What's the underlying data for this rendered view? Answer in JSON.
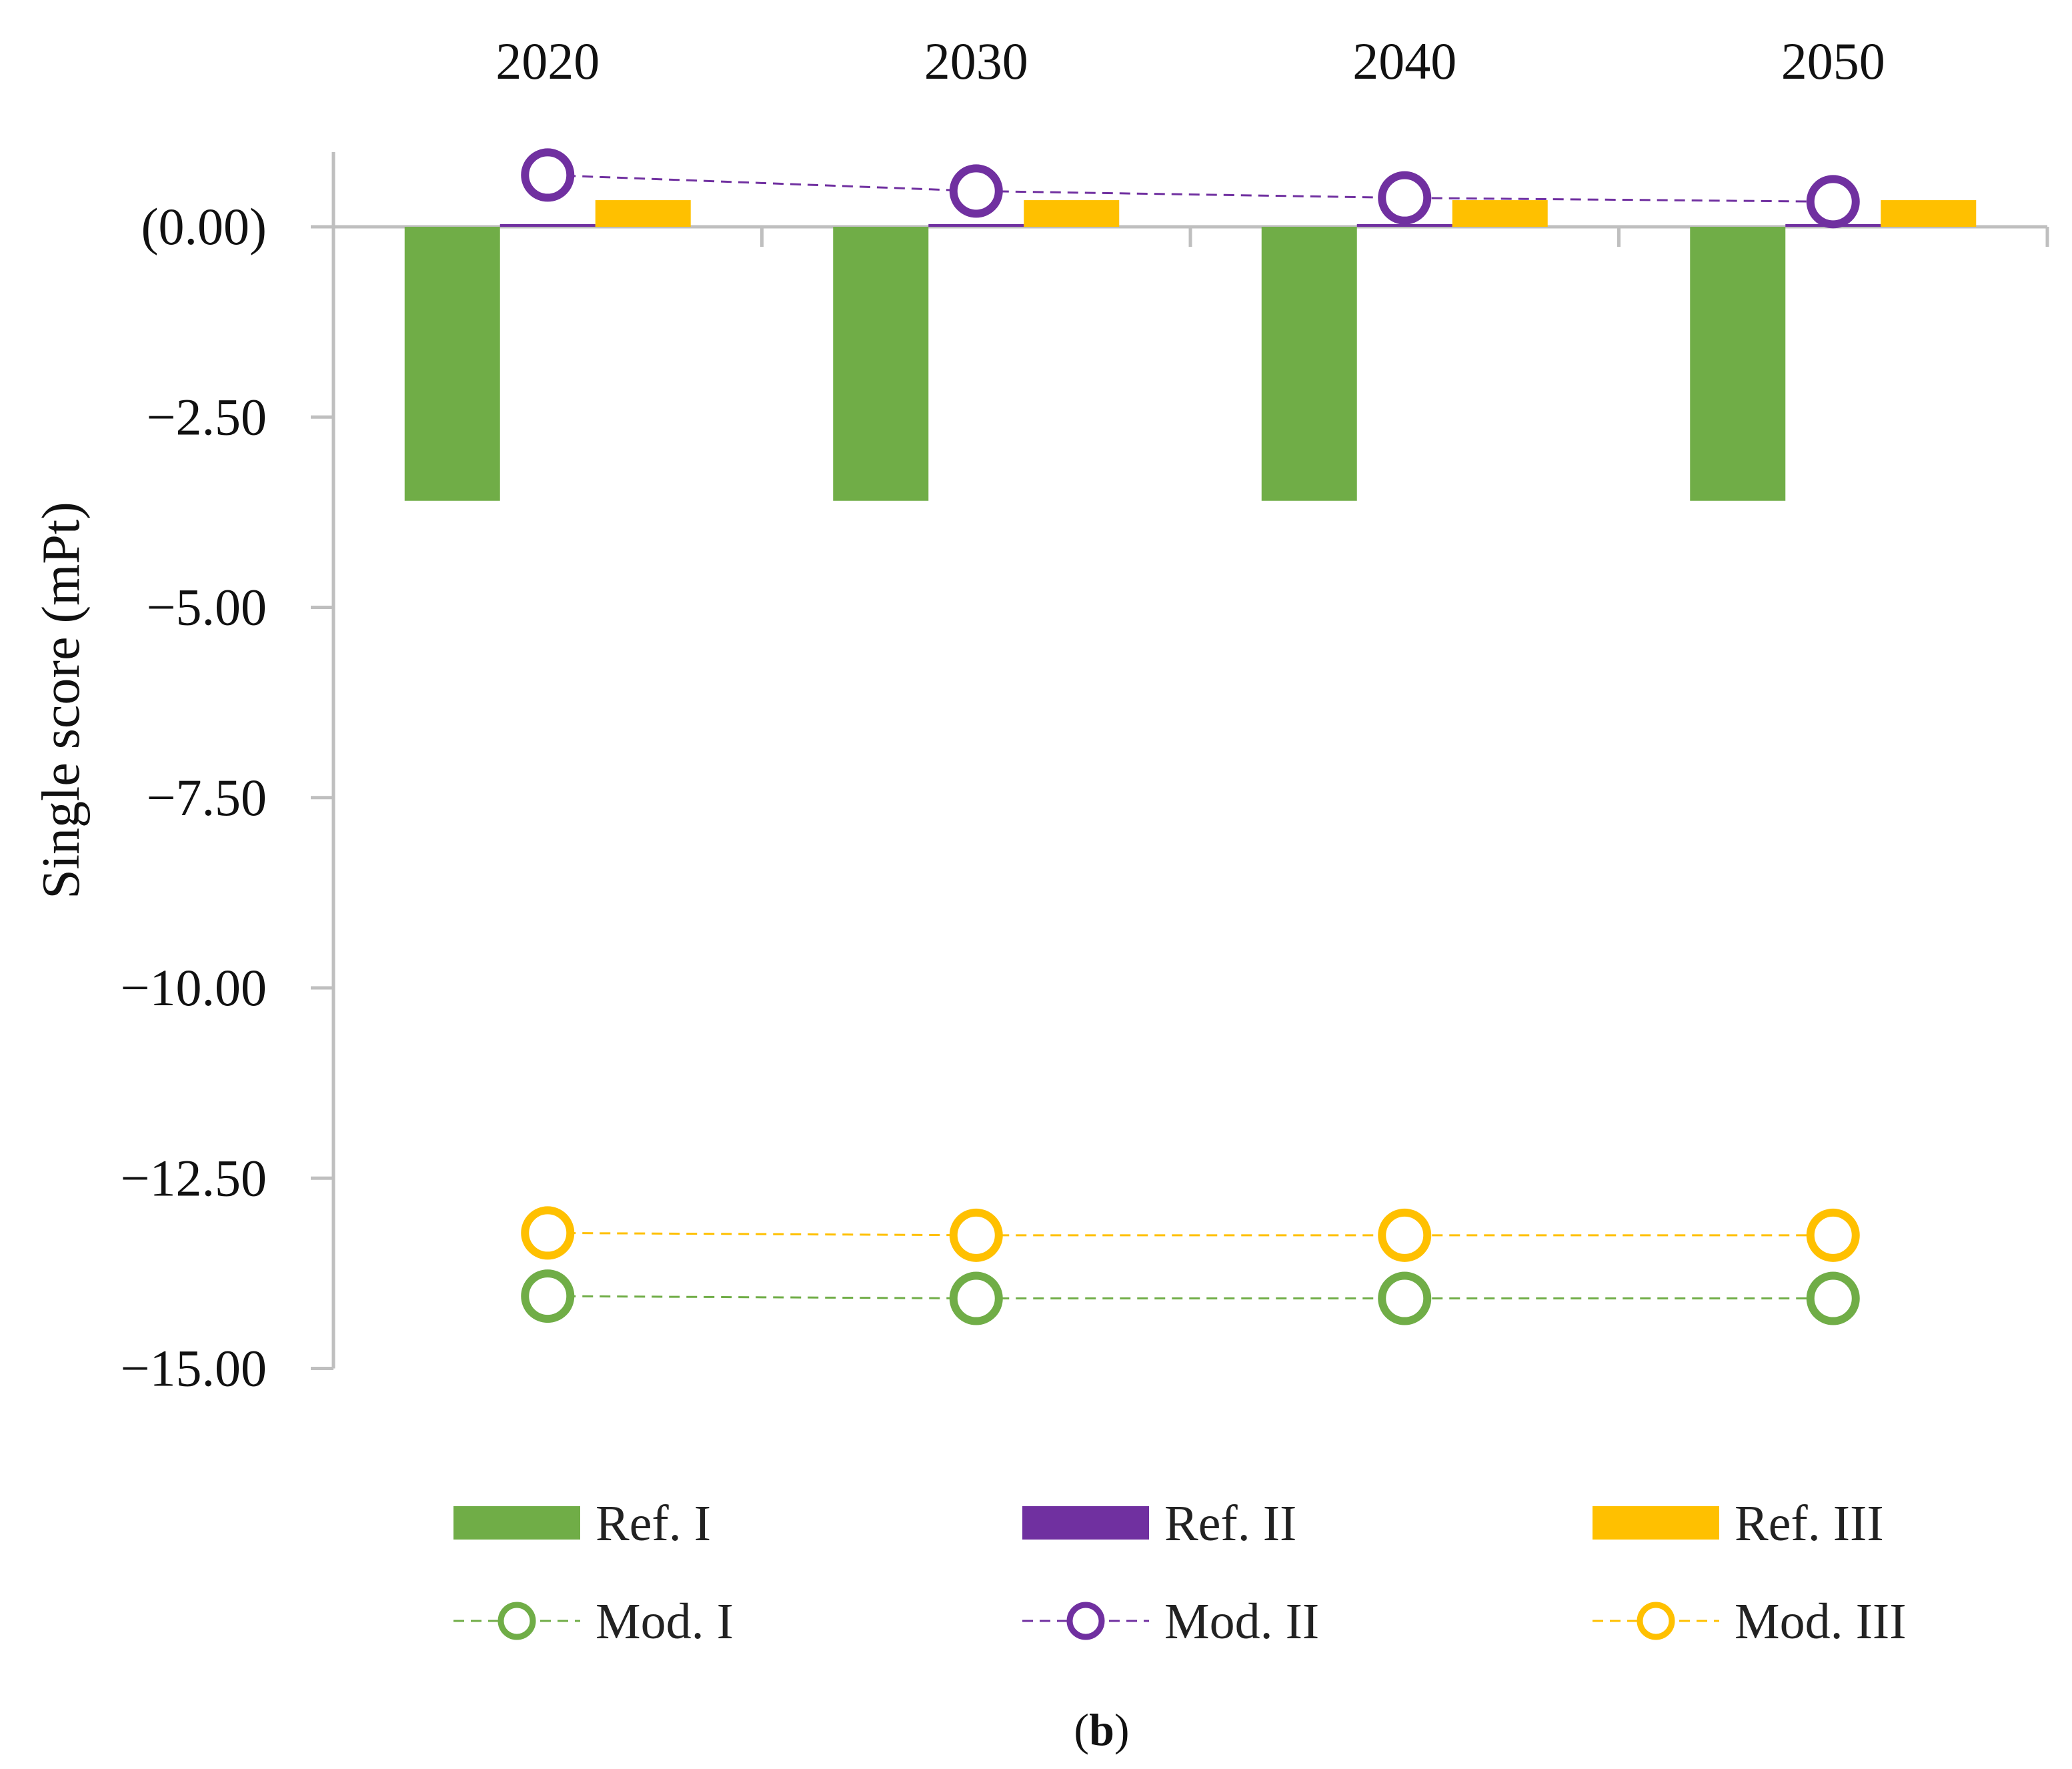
{
  "chart_data": {
    "type": "bar",
    "categories": [
      "2020",
      "2030",
      "2040",
      "2050"
    ],
    "ylabel": "Single score (mPt)",
    "ylim": [
      -15.0,
      1.0
    ],
    "yticks": [
      0,
      -2.5,
      -5,
      -7.5,
      -10,
      -12.5,
      -15
    ],
    "ytick_labels": [
      "(0.00)",
      "−2.50",
      "−5.00",
      "−7.50",
      "−10.00",
      "−12.50",
      "−15.00"
    ],
    "x_axis_position": "top",
    "bar_series": [
      {
        "name": "Ref. I",
        "color": "#70AD47",
        "values": [
          -3.6,
          -3.6,
          -3.6,
          -3.6
        ]
      },
      {
        "name": "Ref. II",
        "color": "#7030A0",
        "values": [
          0.03,
          0.03,
          0.03,
          0.03
        ]
      },
      {
        "name": "Ref. III",
        "color": "#FFC000",
        "values": [
          0.35,
          0.35,
          0.35,
          0.35
        ]
      }
    ],
    "line_series": [
      {
        "name": "Mod. I",
        "color": "#70AD47",
        "values": [
          -14.05,
          -14.08,
          -14.08,
          -14.08
        ]
      },
      {
        "name": "Mod. II",
        "color": "#7030A0",
        "values": [
          0.68,
          0.47,
          0.38,
          0.33
        ]
      },
      {
        "name": "Mod. III",
        "color": "#FFC000",
        "values": [
          -13.22,
          -13.25,
          -13.25,
          -13.25
        ]
      }
    ],
    "legend_position": "bottom",
    "caption_prefix": "(",
    "caption_bold": "b",
    "caption_suffix": ")"
  }
}
